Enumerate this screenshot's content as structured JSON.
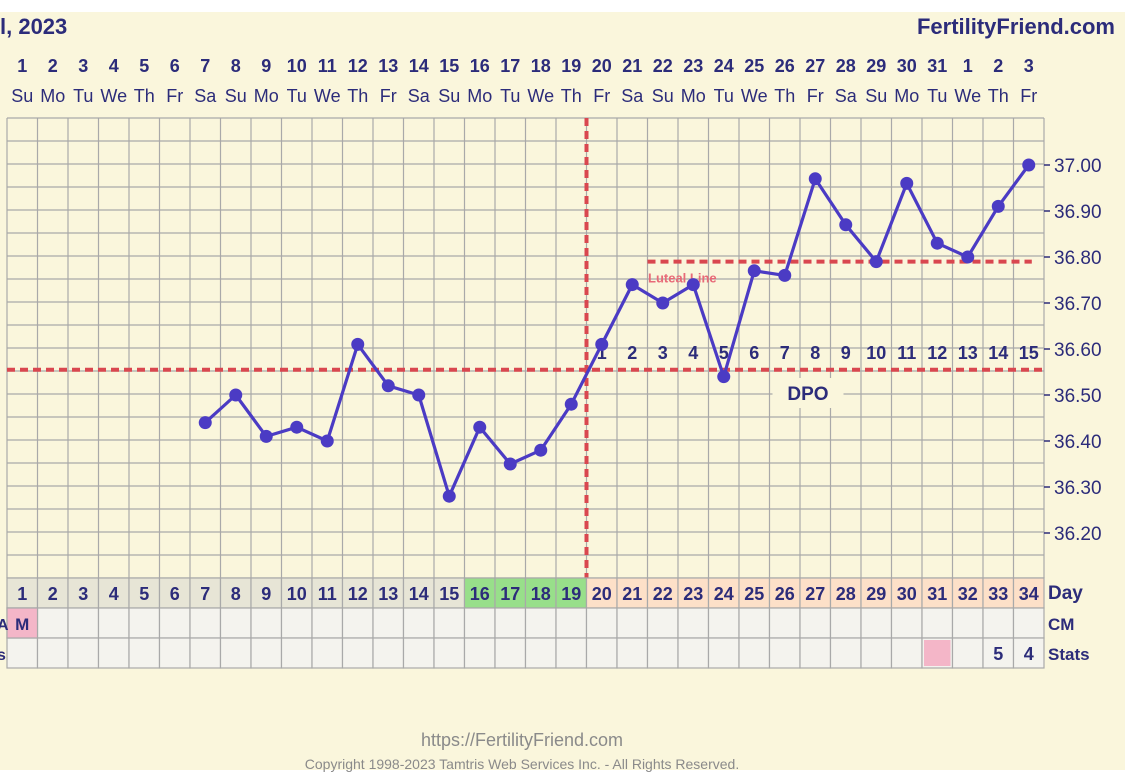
{
  "header": {
    "title": "l, 2023",
    "site": "FertilityFriend.com"
  },
  "footer": {
    "url": "https://FertilityFriend.com",
    "copyright": "Copyright 1998-2023 Tamtris Web Services Inc. - All Rights Reserved."
  },
  "chart_data": {
    "type": "line",
    "xlabel": "Day",
    "cycle_days": [
      1,
      2,
      3,
      4,
      5,
      6,
      7,
      8,
      9,
      10,
      11,
      12,
      13,
      14,
      15,
      16,
      17,
      18,
      19,
      20,
      21,
      22,
      23,
      24,
      25,
      26,
      27,
      28,
      29,
      30,
      31,
      32,
      33,
      34
    ],
    "dates": [
      "1",
      "2",
      "3",
      "4",
      "5",
      "6",
      "7",
      "8",
      "9",
      "10",
      "11",
      "12",
      "13",
      "14",
      "15",
      "16",
      "17",
      "18",
      "19",
      "20",
      "21",
      "22",
      "23",
      "24",
      "25",
      "26",
      "27",
      "28",
      "29",
      "30",
      "31",
      "1",
      "2",
      "3"
    ],
    "weekdays": [
      "Su",
      "Mo",
      "Tu",
      "We",
      "Th",
      "Fr",
      "Sa",
      "Su",
      "Mo",
      "Tu",
      "We",
      "Th",
      "Fr",
      "Sa",
      "Su",
      "Mo",
      "Tu",
      "We",
      "Th",
      "Fr",
      "Sa",
      "Su",
      "Mo",
      "Tu",
      "We",
      "Th",
      "Fr",
      "Sa",
      "Su",
      "Mo",
      "Tu",
      "We",
      "Th",
      "Fr"
    ],
    "ytick_labels": [
      "37.00",
      "36.90",
      "36.80",
      "36.70",
      "36.60",
      "36.50",
      "36.40",
      "36.30",
      "36.20"
    ],
    "ylim": [
      36.1,
      37.1
    ],
    "series": [
      {
        "color": "#4b3bc4",
        "x": [
          7,
          8,
          9,
          10,
          11,
          12,
          13,
          14,
          15,
          16,
          17,
          18,
          19,
          20,
          21,
          22,
          23,
          24,
          25,
          26,
          27,
          28,
          29,
          30,
          31,
          32,
          33,
          34
        ],
        "values": [
          36.44,
          36.5,
          36.41,
          36.43,
          36.4,
          36.61,
          36.52,
          36.5,
          36.28,
          36.43,
          36.35,
          36.38,
          36.48,
          36.61,
          36.74,
          36.7,
          36.74,
          36.54,
          36.77,
          36.76,
          36.97,
          36.87,
          36.79,
          36.96,
          36.83,
          36.8,
          36.91,
          37.0
        ]
      }
    ],
    "coverline": 36.555,
    "ovulation_day": 19,
    "luteal_line": {
      "label": "Luteal Line",
      "value": 36.79,
      "from_day": 22,
      "to_day": 34
    },
    "dpo": {
      "label": "DPO",
      "numbers": [
        "1",
        "2",
        "3",
        "4",
        "5",
        "6",
        "7",
        "8",
        "9",
        "10",
        "11",
        "12",
        "13",
        "14",
        "15"
      ],
      "start_day": 20
    },
    "fertile_days": [
      16,
      17,
      18,
      19
    ],
    "luteal_days": [
      20,
      21,
      22,
      23,
      24,
      25,
      26,
      27,
      28,
      29,
      30,
      31,
      32,
      33,
      34
    ],
    "row_labels": {
      "day": "Day",
      "cm": "CM",
      "stats": "Stats"
    },
    "cm_entries": [
      {
        "day": 1,
        "text": "M"
      }
    ],
    "stats_entries": [
      {
        "day": 33,
        "text": "5"
      },
      {
        "day": 34,
        "text": "4"
      }
    ],
    "stats_marked_day": 31,
    "left_edge_marks": [
      "A",
      "s"
    ],
    "colors": {
      "line": "#4b3bc4",
      "grid": "#a9a9a9",
      "dashed_red": "#d9474f",
      "luteal_label": "#e86a78",
      "fertile_green": "#98df8a",
      "luteal_peach": "#fde0c8",
      "menses_pink": "#f4b6c8",
      "header_text": "#2c2c7a"
    }
  }
}
